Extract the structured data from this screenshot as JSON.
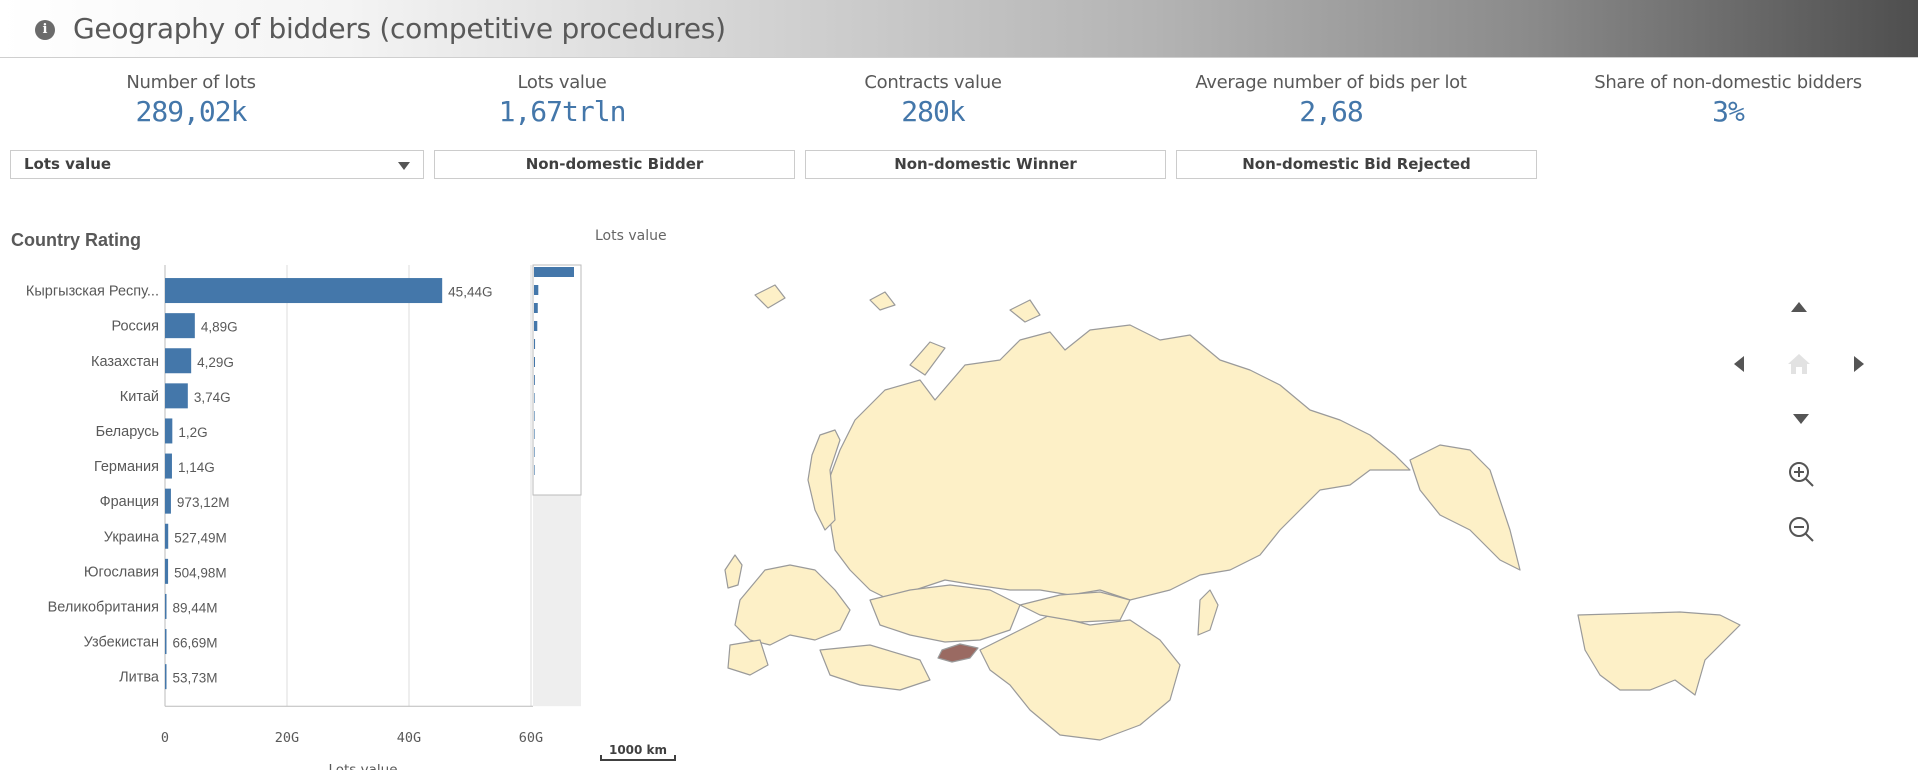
{
  "header": {
    "title": "Geography of bidders (competitive procedures)",
    "info_icon": "i"
  },
  "kpis": [
    {
      "label": "Number of lots",
      "value": "289,02k"
    },
    {
      "label": "Lots value",
      "value": "1,67trln"
    },
    {
      "label": "Contracts value",
      "value": "280k"
    },
    {
      "label": "Average number of bids per lot",
      "value": "2,68"
    },
    {
      "label": "Share of non-domestic bidders",
      "value": "3%"
    }
  ],
  "filters": {
    "dropdown_selected": "Lots value",
    "toggles": [
      "Non-domestic Bidder",
      "Non-domestic Winner",
      "Non-domestic Bid Rejected"
    ]
  },
  "chart_title": "Country Rating",
  "map_title": "Lots value",
  "scale_label": "1000 km",
  "chart_data": {
    "type": "bar",
    "orientation": "horizontal",
    "categories": [
      "Кыргызская Респу...",
      "Россия",
      "Казахстан",
      "Китай",
      "Беларусь",
      "Германия",
      "Франция",
      "Украина",
      "Югославия",
      "Великобритания",
      "Узбекистан",
      "Литва"
    ],
    "values": [
      45.44,
      4.89,
      4.29,
      3.74,
      1.2,
      1.14,
      0.97312,
      0.52749,
      0.50498,
      0.08944,
      0.06669,
      0.05373
    ],
    "value_labels": [
      "45,44G",
      "4,89G",
      "4,29G",
      "3,74G",
      "1,2G",
      "1,14G",
      "973,12M",
      "527,49M",
      "504,98M",
      "89,44M",
      "66,69M",
      "53,73M"
    ],
    "xlabel": "Lots value",
    "xlim": [
      0,
      60
    ],
    "xticks": [
      "0",
      "20G",
      "40G",
      "60G"
    ],
    "grid": true,
    "color": "#4477aa"
  },
  "colors": {
    "accent": "#4477aa",
    "map_fill": "#fdf0c7",
    "map_highlight": "#9a6a62",
    "map_stroke": "#9a9a9a"
  },
  "map_nav": {
    "icons": [
      "up-arrow-icon",
      "left-arrow-icon",
      "home-icon",
      "right-arrow-icon",
      "down-arrow-icon",
      "zoom-in-icon",
      "zoom-out-icon"
    ]
  }
}
